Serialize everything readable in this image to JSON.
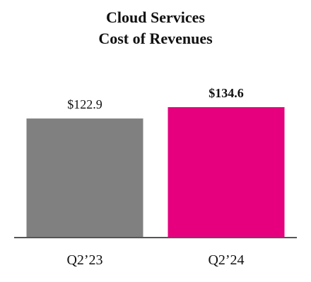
{
  "chart_data": {
    "type": "bar",
    "title": "Cloud Services",
    "subtitle": "Cost of Revenues",
    "categories": [
      "Q2’23",
      "Q2’24"
    ],
    "values": [
      122.9,
      134.6
    ],
    "data_labels": [
      "$122.9",
      "$134.6"
    ],
    "data_label_bold": [
      false,
      true
    ],
    "colors": [
      "#808080",
      "#e6007e"
    ],
    "axis_color": "#555555",
    "ylim": [
      0,
      150
    ],
    "grid": false,
    "legend": "none"
  }
}
